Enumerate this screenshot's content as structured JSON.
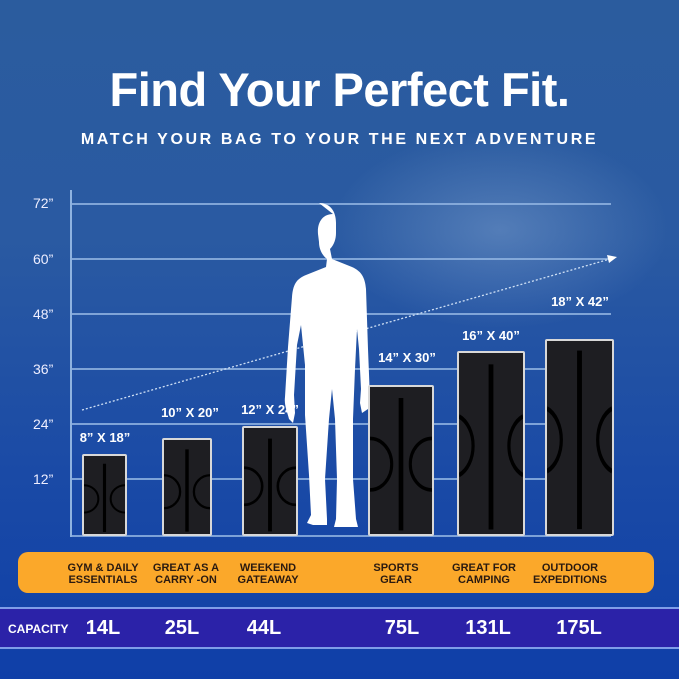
{
  "title": "Find Your Perfect Fit.",
  "subtitle": "MATCH YOUR BAG TO YOUR THE NEXT ADVENTURE",
  "y_ticks": [
    "72”",
    "60”",
    "48”",
    "36”",
    "24”",
    "12”"
  ],
  "bags": [
    {
      "size": "8” X 18”",
      "use": "GYM & DAILY\nESSENTIALS",
      "capacity": "14L"
    },
    {
      "size": "10” X 20”",
      "use": "GREAT AS A\nCARRY -ON",
      "capacity": "25L"
    },
    {
      "size": "12” X 24”",
      "use": "WEEKEND\nGATEAWAY",
      "capacity": "44L"
    },
    {
      "size": "14” X 30”",
      "use": "SPORTS\nGEAR",
      "capacity": "75L"
    },
    {
      "size": "16” X 40”",
      "use": "GREAT FOR\nCAMPING",
      "capacity": "131L"
    },
    {
      "size": "18” X 42”",
      "use": "OUTDOOR\nEXPEDITIONS",
      "capacity": "175L"
    }
  ],
  "capacity_label": "CAPACITY",
  "colors": {
    "use_band": "#fba82a",
    "capacity_band": "#2b22a8",
    "background": "#1f4ea4"
  }
}
